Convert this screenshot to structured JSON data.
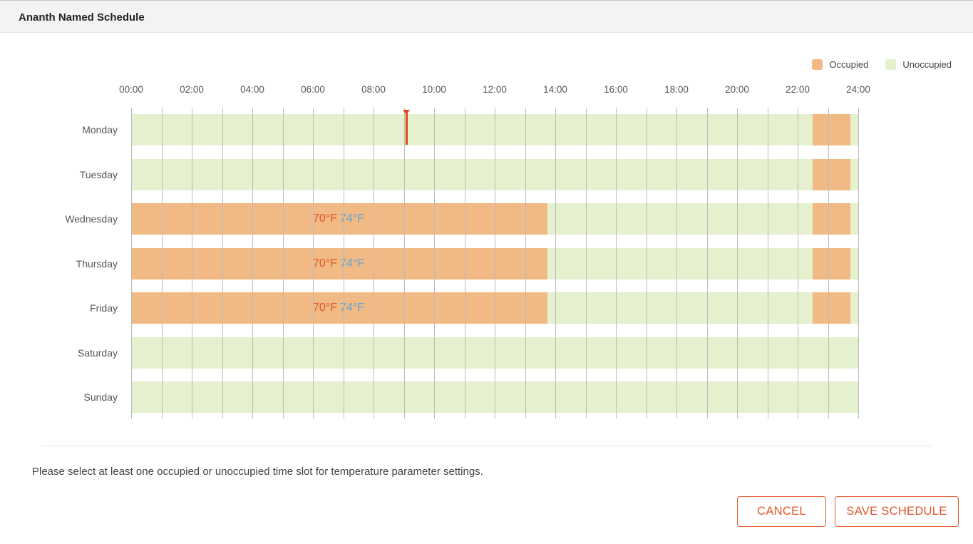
{
  "header": {
    "title": "Ananth Named Schedule"
  },
  "legend": {
    "occupied_label": "Occupied",
    "unoccupied_label": "Unoccupied"
  },
  "colors": {
    "occupied": "#f1b983",
    "unoccupied": "#e5f0cf",
    "accent": "#e2562b",
    "cool": "#5aa5de"
  },
  "timeline": {
    "hours_labels": [
      "00:00",
      "02:00",
      "04:00",
      "06:00",
      "08:00",
      "10:00",
      "12:00",
      "14:00",
      "16:00",
      "18:00",
      "20:00",
      "22:00",
      "24:00"
    ],
    "current_time_marker": "09:05"
  },
  "days": [
    {
      "label": "Monday",
      "occupied": [
        {
          "start": "22:30",
          "end": "23:45"
        }
      ]
    },
    {
      "label": "Tuesday",
      "occupied": [
        {
          "start": "22:30",
          "end": "23:45"
        }
      ]
    },
    {
      "label": "Wednesday",
      "occupied": [
        {
          "start": "00:00",
          "end": "13:45",
          "heat": "70°F",
          "cool": "74°F"
        },
        {
          "start": "22:30",
          "end": "23:45"
        }
      ]
    },
    {
      "label": "Thursday",
      "occupied": [
        {
          "start": "00:00",
          "end": "13:45",
          "heat": "70°F",
          "cool": "74°F"
        },
        {
          "start": "22:30",
          "end": "23:45"
        }
      ]
    },
    {
      "label": "Friday",
      "occupied": [
        {
          "start": "00:00",
          "end": "13:45",
          "heat": "70°F",
          "cool": "74°F"
        },
        {
          "start": "22:30",
          "end": "23:45"
        }
      ]
    },
    {
      "label": "Saturday",
      "occupied": []
    },
    {
      "label": "Sunday",
      "occupied": []
    }
  ],
  "footer": {
    "hint": "Please select at least one occupied or unoccupied time slot for temperature parameter settings.",
    "cancel_label": "CANCEL",
    "save_label": "SAVE SCHEDULE"
  }
}
